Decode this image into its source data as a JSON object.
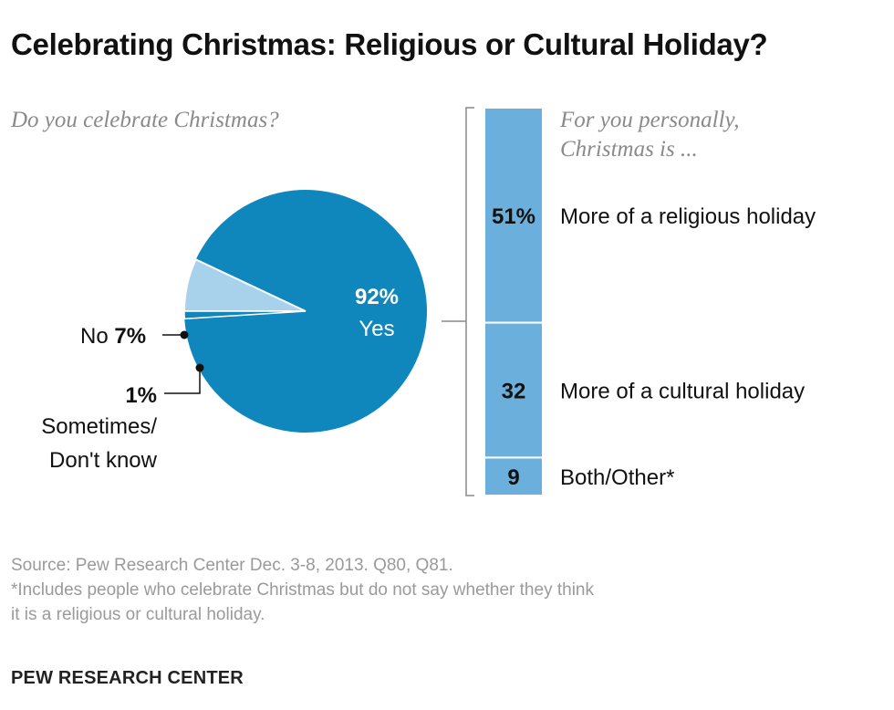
{
  "title": "Celebrating Christmas: Religious or Cultural Holiday?",
  "colors": {
    "pie_main": "#0f87bd",
    "pie_light": "#a8d2ec",
    "bar": "#6bb0dc",
    "text": "#111111",
    "muted": "#8a8a8a"
  },
  "chart_data": [
    {
      "type": "pie",
      "subtitle": "Do you celebrate Christmas?",
      "slices": [
        {
          "label": "Yes",
          "value": 92,
          "value_label": "92%"
        },
        {
          "label": "No",
          "value": 7,
          "value_label": "7%"
        },
        {
          "label": "Sometimes/ Don't know",
          "value": 1,
          "value_label": "1%"
        }
      ]
    },
    {
      "type": "bar",
      "subtitle_lines": [
        "For you personally,",
        "Christmas is ..."
      ],
      "stacked": true,
      "categories": [
        "More of a religious holiday",
        "More of a cultural holiday",
        "Both/Other*"
      ],
      "values": [
        51,
        32,
        9
      ],
      "value_labels": [
        "51%",
        "32",
        "9"
      ]
    }
  ],
  "notes": {
    "source": "Source: Pew Research Center Dec. 3-8, 2013. Q80, Q81.",
    "footnote_lines": [
      "*Includes people who celebrate Christmas but do not say whether they think",
      "it is a religious or cultural holiday."
    ]
  },
  "brand": "PEW RESEARCH CENTER"
}
